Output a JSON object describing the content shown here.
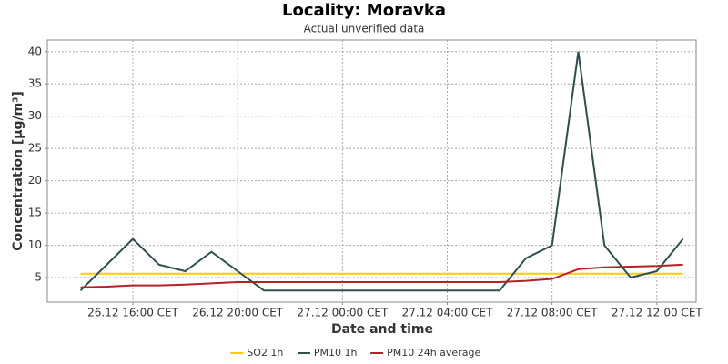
{
  "chart_data": {
    "type": "line",
    "title": "Locality: Moravka",
    "subtitle": "Actual unverified data",
    "x_label": "Date and time",
    "y_label": "Concentration [µg/m³]",
    "x": [
      "26.12 14:00",
      "26.12 15:00",
      "26.12 16:00",
      "26.12 17:00",
      "26.12 18:00",
      "26.12 19:00",
      "26.12 20:00",
      "26.12 21:00",
      "26.12 22:00",
      "26.12 23:00",
      "27.12 00:00",
      "27.12 01:00",
      "27.12 02:00",
      "27.12 03:00",
      "27.12 04:00",
      "27.12 05:00",
      "27.12 06:00",
      "27.12 07:00",
      "27.12 08:00",
      "27.12 09:00",
      "27.12 10:00",
      "27.12 11:00",
      "27.12 12:00",
      "27.12 13:00"
    ],
    "series": [
      {
        "name": "SO2 1h",
        "color": "#ffcc00",
        "values": [
          5.6,
          5.6,
          5.6,
          5.6,
          5.6,
          5.6,
          5.6,
          5.6,
          5.6,
          5.6,
          5.6,
          5.6,
          5.6,
          5.6,
          5.6,
          5.6,
          5.6,
          5.6,
          5.6,
          5.6,
          5.6,
          5.6,
          5.6,
          5.6
        ]
      },
      {
        "name": "PM10 1h",
        "color": "#2f4f4f",
        "values": [
          3,
          7,
          11,
          7,
          6,
          9,
          6,
          3,
          3,
          3,
          3,
          3,
          3,
          3,
          3,
          3,
          3,
          8,
          10,
          40,
          10,
          5,
          6,
          11
        ]
      },
      {
        "name": "PM10 24h average",
        "color": "#b22222",
        "values": [
          3.5,
          3.6,
          3.8,
          3.8,
          3.9,
          4.1,
          4.3,
          4.3,
          4.3,
          4.3,
          4.3,
          4.3,
          4.3,
          4.3,
          4.3,
          4.3,
          4.3,
          4.5,
          4.8,
          6.3,
          6.6,
          6.7,
          6.8,
          7.0
        ]
      }
    ],
    "xlim": [
      "26.12 12:44",
      "27.12 13:30"
    ],
    "xticks": [
      {
        "value": "26.12 16:00",
        "label": "26.12 16:00 CET"
      },
      {
        "value": "26.12 20:00",
        "label": "26.12 20:00 CET"
      },
      {
        "value": "27.12 00:00",
        "label": "27.12 00:00 CET"
      },
      {
        "value": "27.12 04:00",
        "label": "27.12 04:00 CET"
      },
      {
        "value": "27.12 08:00",
        "label": "27.12 08:00 CET"
      },
      {
        "value": "27.12 12:00",
        "label": "27.12 12:00 CET"
      }
    ],
    "ylim": [
      1.2,
      41.8
    ],
    "yticks": [
      5,
      10,
      15,
      20,
      25,
      30,
      35,
      40
    ],
    "grid": true,
    "legend": "bottom"
  }
}
